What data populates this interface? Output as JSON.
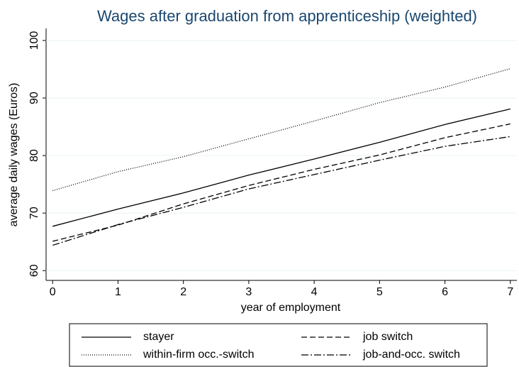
{
  "chart_data": {
    "type": "line",
    "title": "Wages after graduation from apprenticeship (weighted)",
    "x_label": "year of employment",
    "y_label": "average daily wages (Euros)",
    "x": [
      0,
      1,
      2,
      3,
      4,
      5,
      6,
      7
    ],
    "series": [
      {
        "name": "stayer",
        "color": "#000000",
        "dash": "none",
        "values": [
          67.7,
          70.7,
          73.5,
          76.6,
          79.4,
          82.3,
          85.4,
          88.1
        ]
      },
      {
        "name": "job switch",
        "color": "#000000",
        "dash": "8,4",
        "values": [
          65.1,
          67.9,
          71.6,
          74.8,
          77.6,
          80.1,
          83.1,
          85.5
        ]
      },
      {
        "name": "within-firm occ.-switch",
        "color": "#000000",
        "dash": "1,2",
        "values": [
          73.9,
          77.2,
          79.8,
          82.9,
          86.0,
          89.2,
          91.9,
          95.1
        ]
      },
      {
        "name": "job-and-occ. switch",
        "color": "#000000",
        "dash": "10,3,2,3",
        "values": [
          64.4,
          68.0,
          71.0,
          74.2,
          76.7,
          79.2,
          81.6,
          83.3
        ]
      }
    ],
    "xlim": [
      -0.1,
      7.1
    ],
    "xticks": [
      0,
      1,
      2,
      3,
      4,
      5,
      6,
      7
    ],
    "ylim": [
      58.3,
      102.1
    ],
    "yticks": [
      60,
      70,
      80,
      90,
      100
    ],
    "title_color": "#1a476f"
  }
}
